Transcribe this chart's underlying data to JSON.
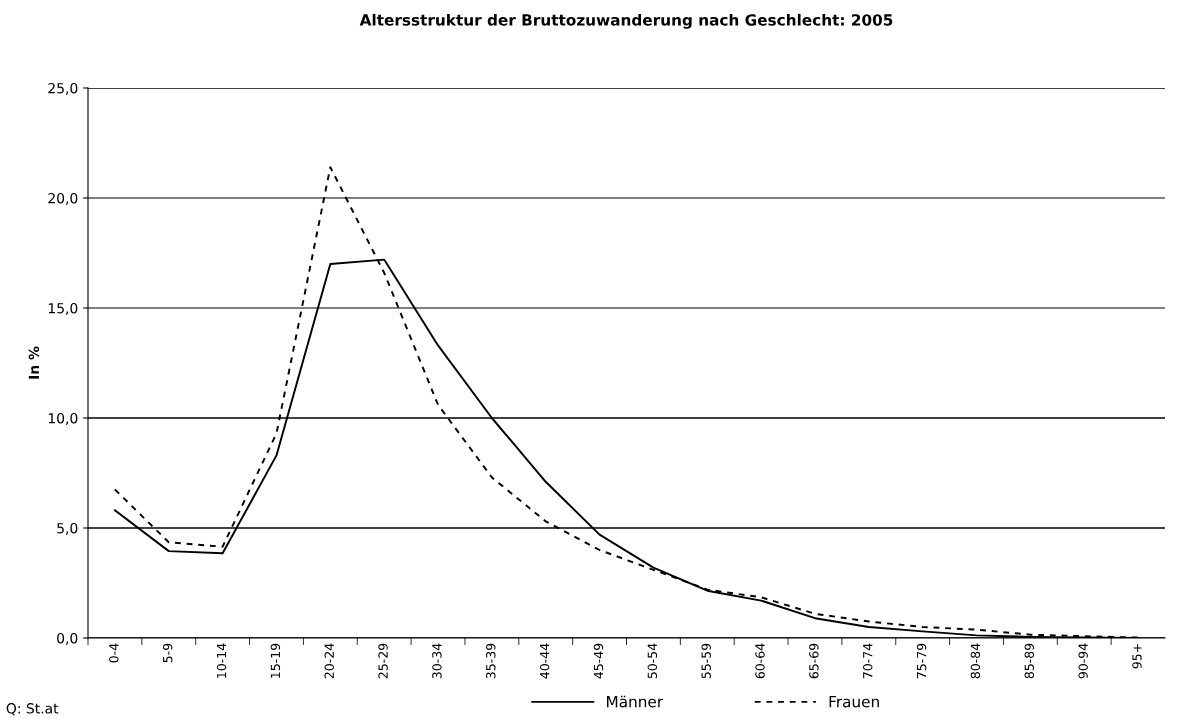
{
  "chart_data": {
    "type": "line",
    "title": "Altersstruktur der Bruttozuwanderung nach Geschlecht: 2005",
    "ylabel": "In %",
    "categories": [
      "0-4",
      "5-9",
      "10-14",
      "15-19",
      "20-24",
      "25-29",
      "30-34",
      "35-39",
      "40-44",
      "45-49",
      "50-54",
      "55-59",
      "60-64",
      "65-69",
      "70-74",
      "75-79",
      "80-84",
      "85-89",
      "90-94",
      "95+"
    ],
    "series": [
      {
        "name": "Männer",
        "color": "#000000",
        "line_style": "solid",
        "values": [
          5.8,
          3.95,
          3.85,
          8.3,
          17.0,
          17.2,
          13.3,
          10.0,
          7.1,
          4.7,
          3.2,
          2.15,
          1.7,
          0.9,
          0.5,
          0.3,
          0.12,
          0.05,
          0.02,
          0.0
        ]
      },
      {
        "name": "Frauen",
        "color": "#000000",
        "line_style": "dotted",
        "values": [
          6.75,
          4.35,
          4.15,
          9.3,
          21.4,
          16.6,
          10.6,
          7.3,
          5.3,
          4.0,
          3.1,
          2.2,
          1.85,
          1.1,
          0.75,
          0.5,
          0.38,
          0.15,
          0.08,
          0.02
        ]
      }
    ],
    "ylim": [
      0,
      25
    ],
    "yticks": [
      {
        "value": 0,
        "label": "0,0"
      },
      {
        "value": 5,
        "label": "5,0"
      },
      {
        "value": 10,
        "label": "10,0"
      },
      {
        "value": 15,
        "label": "15,0"
      },
      {
        "value": 20,
        "label": "20,0"
      },
      {
        "value": 25,
        "label": "25,0"
      }
    ],
    "grid": "y",
    "legend": "bottom",
    "marker": "none",
    "annotations": [
      "Q: St.at"
    ]
  }
}
